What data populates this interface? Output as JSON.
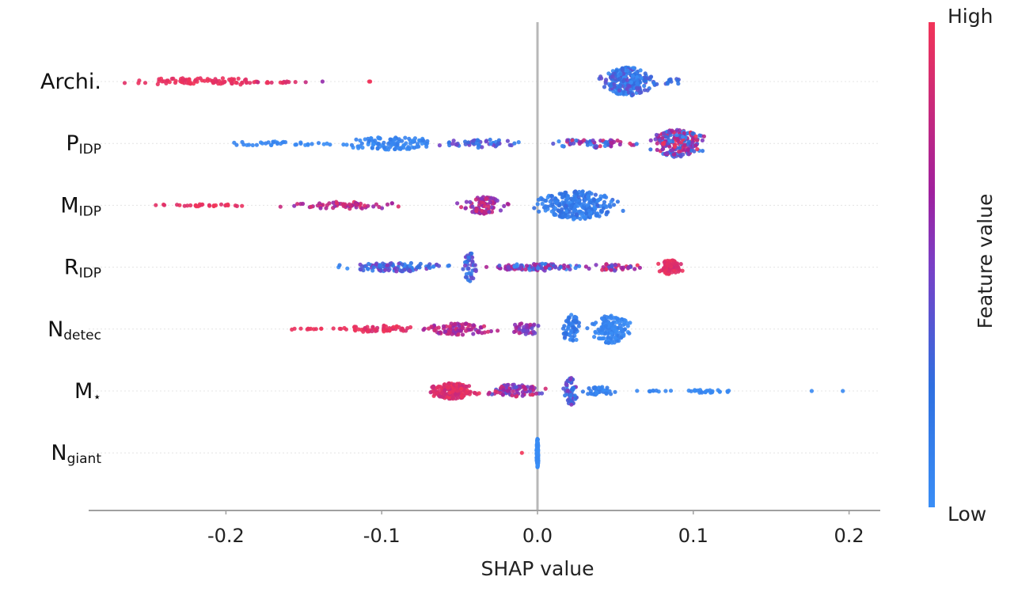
{
  "chart_data": {
    "type": "scatter",
    "subtype": "shap-beeswarm",
    "title": "",
    "xlabel": "SHAP value",
    "ylabel": "",
    "xlim": [
      -0.285,
      0.22
    ],
    "xticks": [
      -0.2,
      -0.1,
      0.0,
      0.1,
      0.2
    ],
    "xtick_labels": [
      "-0.2",
      "-0.1",
      "0.0",
      "0.1",
      "0.2"
    ],
    "zero_line": 0.0,
    "grid": false,
    "colorbar": {
      "title": "Feature value",
      "high_label": "High",
      "low_label": "Low",
      "high_color": "#ff0052",
      "mid_color": "#a020a0",
      "low_color": "#1e88e5",
      "placement": "right"
    },
    "features": [
      {
        "name": "Archi.",
        "main": "Archi.",
        "sub": "",
        "clusters": [
          {
            "center": -0.215,
            "spread": 0.05,
            "count": 90,
            "spread_y": 0.25,
            "value_range": [
              0.92,
              1.0
            ]
          },
          {
            "center": -0.16,
            "spread": 0.02,
            "count": 10,
            "spread_y": 0.1,
            "value_range": [
              0.75,
              0.95
            ]
          },
          {
            "center": -0.138,
            "spread": 0.001,
            "count": 1,
            "spread_y": 0.0,
            "value_range": [
              0.6,
              0.6
            ]
          },
          {
            "center": -0.108,
            "spread": 0.002,
            "count": 2,
            "spread_y": 0.0,
            "value_range": [
              0.95,
              1.0
            ]
          },
          {
            "center": 0.058,
            "spread": 0.014,
            "count": 260,
            "spread_y": 1.0,
            "value_range": [
              0.0,
              0.45
            ]
          },
          {
            "center": 0.085,
            "spread": 0.01,
            "count": 12,
            "spread_y": 0.2,
            "value_range": [
              0.1,
              0.4
            ]
          }
        ],
        "min": -0.265,
        "max": 0.1
      },
      {
        "name": "P_IDP",
        "main": "P",
        "sub": "IDP",
        "clusters": [
          {
            "center": -0.17,
            "spread": 0.035,
            "count": 35,
            "spread_y": 0.15,
            "value_range": [
              0.0,
              0.1
            ]
          },
          {
            "center": -0.095,
            "spread": 0.03,
            "count": 110,
            "spread_y": 0.45,
            "value_range": [
              0.0,
              0.15
            ]
          },
          {
            "center": -0.035,
            "spread": 0.025,
            "count": 50,
            "spread_y": 0.3,
            "value_range": [
              0.0,
              0.5
            ]
          },
          {
            "center": 0.035,
            "spread": 0.025,
            "count": 60,
            "spread_y": 0.3,
            "value_range": [
              0.0,
              0.95
            ]
          },
          {
            "center": 0.09,
            "spread": 0.014,
            "count": 230,
            "spread_y": 1.0,
            "value_range": [
              0.0,
              1.0
            ]
          }
        ],
        "min": -0.228,
        "max": 0.13
      },
      {
        "name": "M_IDP",
        "main": "M",
        "sub": "IDP",
        "clusters": [
          {
            "center": -0.21,
            "spread": 0.03,
            "count": 30,
            "spread_y": 0.1,
            "value_range": [
              0.9,
              1.0
            ]
          },
          {
            "center": -0.12,
            "spread": 0.035,
            "count": 60,
            "spread_y": 0.25,
            "value_range": [
              0.55,
              0.95
            ]
          },
          {
            "center": -0.035,
            "spread": 0.012,
            "count": 80,
            "spread_y": 0.6,
            "value_range": [
              0.5,
              0.9
            ]
          },
          {
            "center": 0.025,
            "spread": 0.022,
            "count": 270,
            "spread_y": 1.0,
            "value_range": [
              0.0,
              0.3
            ]
          }
        ],
        "min": -0.245,
        "max": 0.083
      },
      {
        "name": "R_IDP",
        "main": "R",
        "sub": "IDP",
        "clusters": [
          {
            "center": -0.09,
            "spread": 0.03,
            "count": 100,
            "spread_y": 0.3,
            "value_range": [
              0.0,
              0.55
            ]
          },
          {
            "center": -0.043,
            "spread": 0.004,
            "count": 40,
            "spread_y": 1.0,
            "value_range": [
              0.1,
              0.5
            ]
          },
          {
            "center": 0.0,
            "spread": 0.025,
            "count": 100,
            "spread_y": 0.25,
            "value_range": [
              0.0,
              0.8
            ]
          },
          {
            "center": 0.05,
            "spread": 0.015,
            "count": 40,
            "spread_y": 0.25,
            "value_range": [
              0.3,
              1.0
            ]
          },
          {
            "center": 0.085,
            "spread": 0.007,
            "count": 80,
            "spread_y": 0.5,
            "value_range": [
              0.85,
              1.0
            ]
          }
        ],
        "min": -0.13,
        "max": 0.1
      },
      {
        "name": "N_detec",
        "main": "N",
        "sub": "detec",
        "clusters": [
          {
            "center": -0.14,
            "spread": 0.02,
            "count": 15,
            "spread_y": 0.05,
            "value_range": [
              0.95,
              1.0
            ]
          },
          {
            "center": -0.1,
            "spread": 0.02,
            "count": 55,
            "spread_y": 0.25,
            "value_range": [
              0.85,
              1.0
            ]
          },
          {
            "center": -0.05,
            "spread": 0.02,
            "count": 90,
            "spread_y": 0.4,
            "value_range": [
              0.55,
              0.9
            ]
          },
          {
            "center": -0.008,
            "spread": 0.008,
            "count": 40,
            "spread_y": 0.45,
            "value_range": [
              0.4,
              0.8
            ]
          },
          {
            "center": 0.022,
            "spread": 0.005,
            "count": 60,
            "spread_y": 1.0,
            "value_range": [
              0.0,
              0.3
            ]
          },
          {
            "center": 0.047,
            "spread": 0.01,
            "count": 150,
            "spread_y": 1.0,
            "value_range": [
              0.0,
              0.15
            ]
          }
        ],
        "min": -0.168,
        "max": 0.062
      },
      {
        "name": "M_star",
        "main": "M",
        "sub": "⋆",
        "clusters": [
          {
            "center": -0.055,
            "spread": 0.013,
            "count": 170,
            "spread_y": 0.55,
            "value_range": [
              0.8,
              1.0
            ]
          },
          {
            "center": -0.015,
            "spread": 0.015,
            "count": 90,
            "spread_y": 0.45,
            "value_range": [
              0.35,
              0.95
            ]
          },
          {
            "center": 0.022,
            "spread": 0.004,
            "count": 60,
            "spread_y": 1.0,
            "value_range": [
              0.1,
              0.55
            ]
          },
          {
            "center": 0.04,
            "spread": 0.01,
            "count": 40,
            "spread_y": 0.3,
            "value_range": [
              0.0,
              0.2
            ]
          },
          {
            "center": 0.075,
            "spread": 0.015,
            "count": 10,
            "spread_y": 0.05,
            "value_range": [
              0.0,
              0.1
            ]
          },
          {
            "center": 0.11,
            "spread": 0.013,
            "count": 25,
            "spread_y": 0.15,
            "value_range": [
              0.0,
              0.1
            ]
          },
          {
            "center": 0.176,
            "spread": 0.001,
            "count": 1,
            "spread_y": 0.0,
            "value_range": [
              0.0,
              0.05
            ]
          },
          {
            "center": 0.196,
            "spread": 0.001,
            "count": 1,
            "spread_y": 0.0,
            "value_range": [
              0.0,
              0.05
            ]
          }
        ],
        "min": -0.072,
        "max": 0.196
      },
      {
        "name": "N_giant",
        "main": "N",
        "sub": "giant",
        "clusters": [
          {
            "center": 0.0,
            "spread": 0.0005,
            "count": 160,
            "spread_y": 1.0,
            "value_range": [
              0.0,
              0.05
            ]
          },
          {
            "center": -0.01,
            "spread": 0.0,
            "count": 1,
            "spread_y": 0.0,
            "value_range": [
              1.0,
              1.0
            ]
          }
        ],
        "min": -0.01,
        "max": 0.001
      }
    ]
  }
}
